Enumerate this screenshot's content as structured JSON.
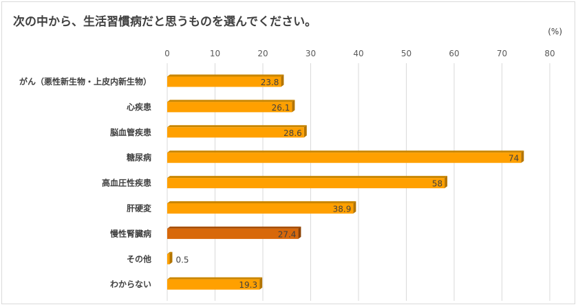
{
  "chart_data": {
    "type": "bar",
    "orientation": "horizontal",
    "title": "次の中から、生活習慣病だと思うものを選んでください。",
    "unit": "(%)",
    "xlim": [
      0,
      80
    ],
    "ticks": [
      0,
      10,
      20,
      30,
      40,
      50,
      60,
      70,
      80
    ],
    "grid": true,
    "categories": [
      "がん（悪性新生物・上皮内新生物）",
      "心疾患",
      "脳血管疾患",
      "糖尿病",
      "高血圧性疾患",
      "肝硬変",
      "慢性腎臓病",
      "その他",
      "わからない"
    ],
    "values": [
      23.8,
      26.1,
      28.6,
      74,
      58,
      38.9,
      27.4,
      0.5,
      19.3
    ],
    "highlight_index": 6,
    "colors": {
      "bar": "#ffa000",
      "bar_top": "#c98600",
      "bar_side": "#b37400",
      "highlight": "#d8680a",
      "highlight_top": "#a84f06",
      "highlight_side": "#8c4204",
      "grid": "#d9d9d9"
    }
  }
}
